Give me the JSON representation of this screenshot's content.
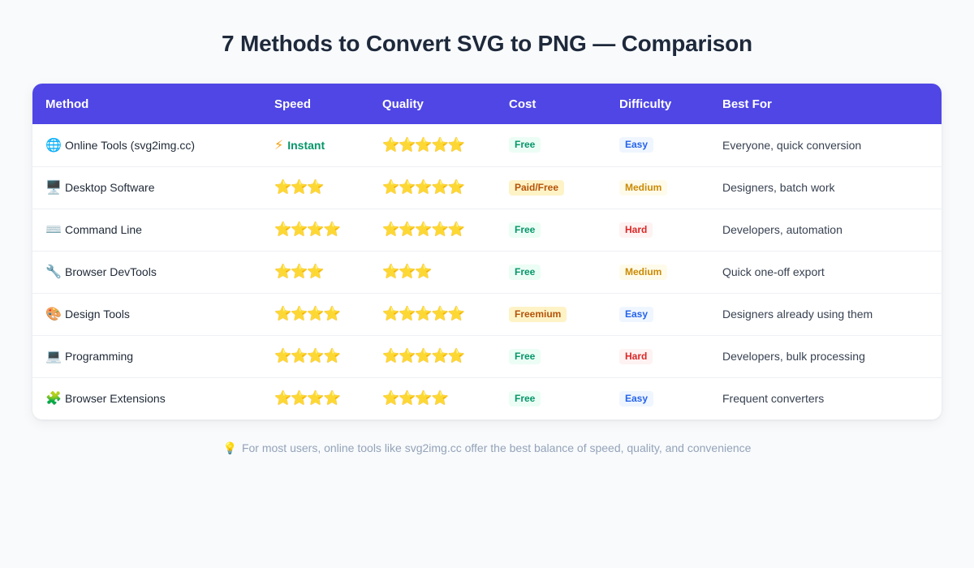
{
  "title": "7 Methods to Convert SVG to PNG — Comparison",
  "table": {
    "headers": [
      "Method",
      "Speed",
      "Quality",
      "Cost",
      "Difficulty",
      "Best For"
    ],
    "rows": [
      {
        "icon": "🌐",
        "icon_name": "globe-icon",
        "method": "Online Tools (svg2img.cc)",
        "speed_text": "Instant",
        "speed_stars": "",
        "quality": "⭐⭐⭐⭐⭐",
        "cost": "Free",
        "cost_style": "green",
        "difficulty": "Easy",
        "difficulty_style": "blue",
        "best_for": "Everyone, quick conversion"
      },
      {
        "icon": "🖥️",
        "icon_name": "desktop-icon",
        "method": "Desktop Software",
        "speed_text": "",
        "speed_stars": "⭐⭐⭐",
        "quality": "⭐⭐⭐⭐⭐",
        "cost": "Paid/Free",
        "cost_style": "amber",
        "difficulty": "Medium",
        "difficulty_style": "yellow",
        "best_for": "Designers, batch work"
      },
      {
        "icon": "⌨️",
        "icon_name": "keyboard-icon",
        "method": "Command Line",
        "speed_text": "",
        "speed_stars": "⭐⭐⭐⭐",
        "quality": "⭐⭐⭐⭐⭐",
        "cost": "Free",
        "cost_style": "green",
        "difficulty": "Hard",
        "difficulty_style": "red",
        "best_for": "Developers, automation"
      },
      {
        "icon": "🔧",
        "icon_name": "wrench-icon",
        "method": "Browser DevTools",
        "speed_text": "",
        "speed_stars": "⭐⭐⭐",
        "quality": "⭐⭐⭐",
        "cost": "Free",
        "cost_style": "green",
        "difficulty": "Medium",
        "difficulty_style": "yellow",
        "best_for": "Quick one-off export"
      },
      {
        "icon": "🎨",
        "icon_name": "palette-icon",
        "method": "Design Tools",
        "speed_text": "",
        "speed_stars": "⭐⭐⭐⭐",
        "quality": "⭐⭐⭐⭐⭐",
        "cost": "Freemium",
        "cost_style": "amber",
        "difficulty": "Easy",
        "difficulty_style": "blue",
        "best_for": "Designers already using them"
      },
      {
        "icon": "💻",
        "icon_name": "laptop-icon",
        "method": "Programming",
        "speed_text": "",
        "speed_stars": "⭐⭐⭐⭐",
        "quality": "⭐⭐⭐⭐⭐",
        "cost": "Free",
        "cost_style": "green",
        "difficulty": "Hard",
        "difficulty_style": "red",
        "best_for": "Developers, bulk processing"
      },
      {
        "icon": "🧩",
        "icon_name": "puzzle-icon",
        "method": "Browser Extensions",
        "speed_text": "",
        "speed_stars": "⭐⭐⭐⭐",
        "quality": "⭐⭐⭐⭐",
        "cost": "Free",
        "cost_style": "green",
        "difficulty": "Easy",
        "difficulty_style": "blue",
        "best_for": "Frequent converters"
      }
    ]
  },
  "footer": {
    "icon": "💡",
    "text": "For most users, online tools like svg2img.cc offer the best balance of speed, quality, and convenience"
  },
  "colors": {
    "header_bg": "#4f46e5",
    "page_bg": "#f8fafc",
    "instant": "#059669"
  }
}
